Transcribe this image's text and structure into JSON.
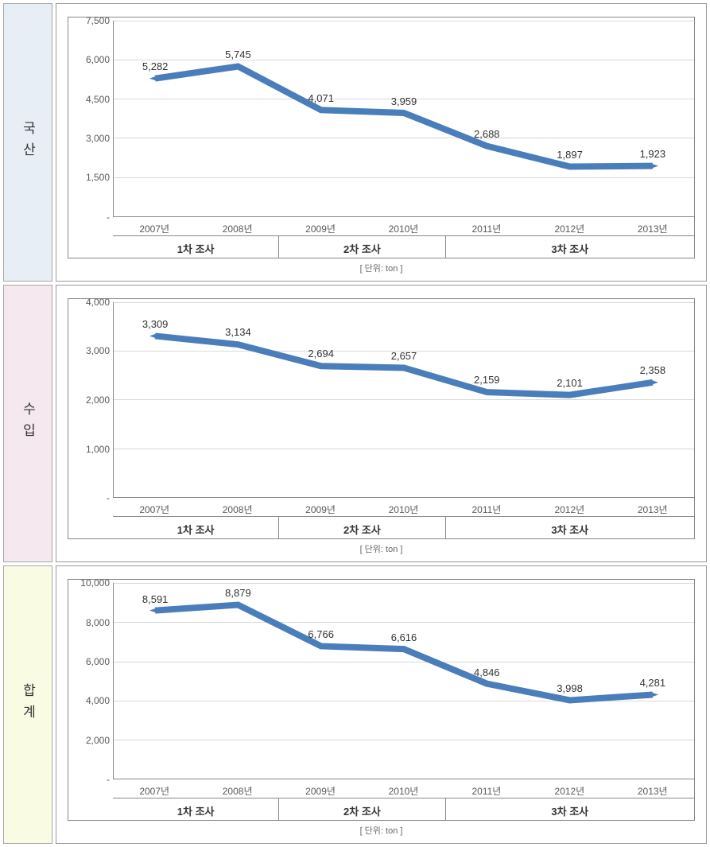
{
  "unit_label": "[ 단위: ton ]",
  "x_categories": [
    "2007년",
    "2008년",
    "2009년",
    "2010년",
    "2011년",
    "2012년",
    "2013년"
  ],
  "groups": [
    {
      "label": "1차 조사",
      "span": 2
    },
    {
      "label": "2차 조사",
      "span": 2
    },
    {
      "label": "3차 조사",
      "span": 3
    }
  ],
  "line_color": "#4a7ebb",
  "marker_color": "#4a7ebb",
  "grid_color": "#d9d9d9",
  "axis_color": "#888888",
  "text_color": "#595959",
  "label_color": "#333333",
  "charts": [
    {
      "row_label": "국산",
      "row_bg": "#e8eef5",
      "ymin": 0,
      "ymax": 7500,
      "ytick_step": 1500,
      "yticks": [
        "7,500",
        "6,000",
        "4,500",
        "3,000",
        "1,500",
        "-"
      ],
      "values": [
        5282,
        5745,
        4071,
        3959,
        2688,
        1897,
        1923
      ],
      "value_labels": [
        "5,282",
        "5,745",
        "4,071",
        "3,959",
        "2,688",
        "1,897",
        "1,923"
      ]
    },
    {
      "row_label": "수입",
      "row_bg": "#f5e8ee",
      "ymin": 0,
      "ymax": 4000,
      "ytick_step": 1000,
      "yticks": [
        "4,000",
        "3,000",
        "2,000",
        "1,000",
        "-"
      ],
      "values": [
        3309,
        3134,
        2694,
        2657,
        2159,
        2101,
        2358
      ],
      "value_labels": [
        "3,309",
        "3,134",
        "2,694",
        "2,657",
        "2,159",
        "2,101",
        "2,358"
      ]
    },
    {
      "row_label": "합계",
      "row_bg": "#fafbe3",
      "ymin": 0,
      "ymax": 10000,
      "ytick_step": 2000,
      "yticks": [
        "10,000",
        "8,000",
        "6,000",
        "4,000",
        "2,000",
        "-"
      ],
      "values": [
        8591,
        8879,
        6766,
        6616,
        4846,
        3998,
        4281
      ],
      "value_labels": [
        "8,591",
        "8,879",
        "6,766",
        "6,616",
        "4,846",
        "3,998",
        "4,281"
      ]
    }
  ]
}
